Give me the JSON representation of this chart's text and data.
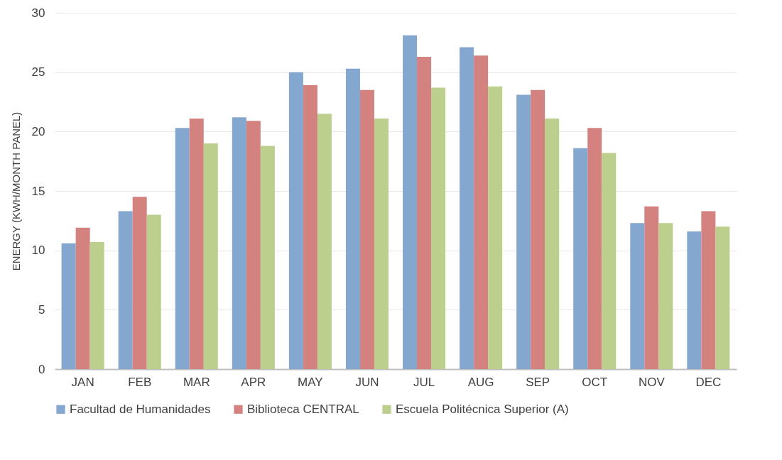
{
  "chart_data": {
    "type": "bar",
    "ylabel": "ENERGY (KWH/MONTH PANEL)",
    "categories": [
      "JAN",
      "FEB",
      "MAR",
      "APR",
      "MAY",
      "JUN",
      "JUL",
      "AUG",
      "SEP",
      "OCT",
      "NOV",
      "DEC"
    ],
    "series": [
      {
        "name": "Facultad de Humanidades",
        "color": "#84a7cf",
        "values": [
          10.6,
          13.3,
          20.3,
          21.2,
          25.0,
          25.3,
          28.1,
          27.1,
          23.1,
          18.6,
          12.3,
          11.6
        ]
      },
      {
        "name": "Biblioteca CENTRAL",
        "color": "#d48280",
        "values": [
          11.9,
          14.5,
          21.1,
          20.9,
          23.9,
          23.5,
          26.3,
          26.4,
          23.5,
          20.3,
          13.7,
          13.3
        ]
      },
      {
        "name": "Escuela Politécnica Superior (A)",
        "color": "#bccf8d",
        "values": [
          10.7,
          13.0,
          19.0,
          18.8,
          21.5,
          21.1,
          23.7,
          23.8,
          21.1,
          18.2,
          12.3,
          12.0
        ]
      }
    ],
    "ylim": [
      0,
      30
    ],
    "yticks": [
      0,
      5,
      10,
      15,
      20,
      25,
      30
    ],
    "grid": "y",
    "legend": "bottom"
  }
}
